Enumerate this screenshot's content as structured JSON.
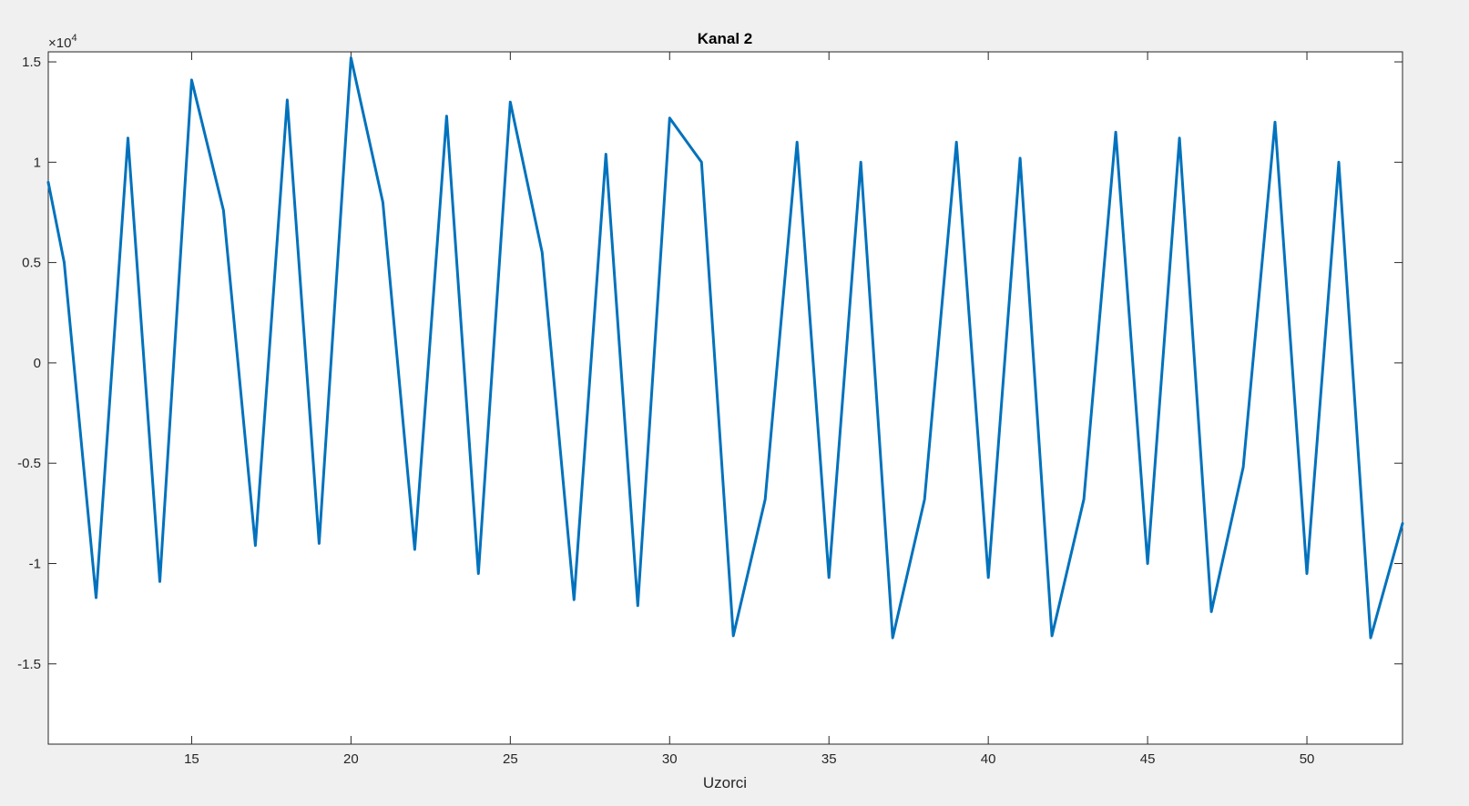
{
  "chart_data": {
    "type": "line",
    "title": "Kanal 2",
    "xlabel": "Uzorci",
    "ylabel": "",
    "y_exponent_label": "×10",
    "y_exponent_power": "4",
    "xlim": [
      10.5,
      53
    ],
    "ylim": [
      -1.9,
      1.55
    ],
    "x_ticks": [
      15,
      20,
      25,
      30,
      35,
      40,
      45,
      50
    ],
    "x_tick_labels": [
      "15",
      "20",
      "25",
      "30",
      "35",
      "40",
      "45",
      "50"
    ],
    "y_ticks": [
      1.5,
      1,
      0.5,
      0,
      -0.5,
      -1,
      -1.5
    ],
    "y_tick_labels": [
      "1.5",
      "1",
      "0.5",
      "0",
      "-0.5",
      "-1",
      "-1.5"
    ],
    "grid": false,
    "box": true,
    "series": [
      {
        "color": "#0072bd",
        "x": [
          10.5,
          11,
          12,
          13,
          14,
          15,
          16,
          17,
          18,
          19,
          20,
          21,
          22,
          23,
          24,
          25,
          26,
          27,
          28,
          29,
          30,
          31,
          32,
          33,
          34,
          35,
          36,
          37,
          38,
          39,
          40,
          41,
          42,
          43,
          44,
          45,
          46,
          47,
          48,
          49,
          50,
          51,
          52,
          53
        ],
        "y": [
          0.9,
          0.5,
          -1.17,
          1.12,
          -1.09,
          1.41,
          0.76,
          -0.91,
          1.31,
          -0.9,
          1.52,
          0.8,
          -0.93,
          1.23,
          -1.05,
          1.3,
          0.55,
          -1.18,
          1.04,
          -1.21,
          1.22,
          1.0,
          -1.36,
          -0.68,
          1.1,
          -1.07,
          1.0,
          -1.37,
          -0.68,
          1.1,
          -1.07,
          1.02,
          -1.36,
          -0.68,
          1.15,
          -1.0,
          1.12,
          -1.24,
          -0.52,
          1.2,
          -1.05,
          1.0,
          -1.37,
          -0.8
        ]
      }
    ]
  }
}
